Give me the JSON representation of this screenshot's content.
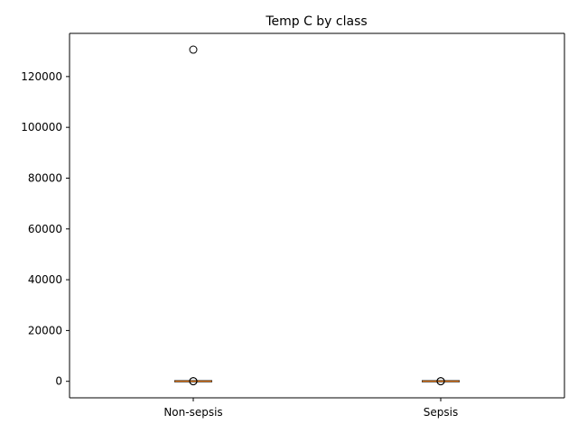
{
  "chart_data": {
    "type": "box",
    "title": "Temp C by class",
    "xlabel": "",
    "ylabel": "",
    "categories": [
      "Non-sepsis",
      "Sepsis"
    ],
    "yticks": [
      0,
      20000,
      40000,
      60000,
      80000,
      100000,
      120000
    ],
    "ytick_labels": [
      "0",
      "20000",
      "40000",
      "60000",
      "80000",
      "100000",
      "120000"
    ],
    "ylim": [
      -6500,
      137000
    ],
    "grid": false,
    "boxes": [
      {
        "name": "Non-sepsis",
        "whisker_low": 35.0,
        "q1": 36.6,
        "median": 37.0,
        "q3": 37.5,
        "whisker_high": 39.0,
        "outliers": [
          130600,
          33.0,
          41.0
        ]
      },
      {
        "name": "Sepsis",
        "whisker_low": 35.0,
        "q1": 36.8,
        "median": 37.3,
        "q3": 38.0,
        "whisker_high": 40.0,
        "outliers": [
          33.0,
          42.0
        ]
      }
    ],
    "colors": {
      "box": "#000000",
      "median": "#ff7f0e",
      "outlier": "#000000"
    }
  }
}
